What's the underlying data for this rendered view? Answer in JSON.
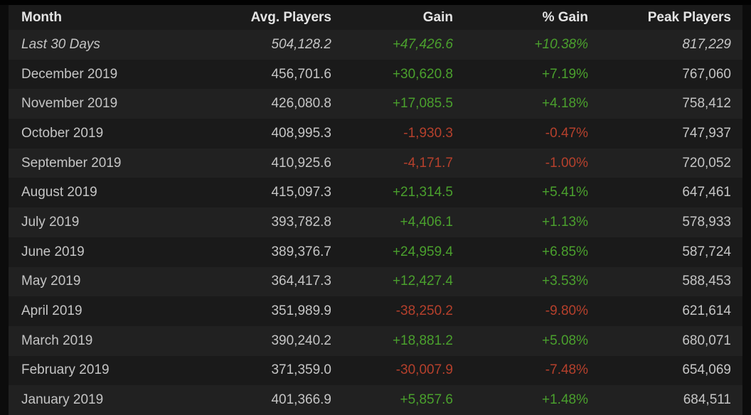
{
  "colors": {
    "positive_text": "#4aa02d",
    "negative_text": "#b5402c",
    "row_odd_bg": "#212121",
    "row_even_bg": "#1a1a1a",
    "header_text": "#e4e4e4",
    "cell_text": "#c5c5c5",
    "page_bg": "#0c0c0c"
  },
  "table": {
    "columns": {
      "month": "Month",
      "avg": "Avg. Players",
      "gain": "Gain",
      "pct": "% Gain",
      "peak": "Peak Players"
    },
    "rows": [
      {
        "month": "Last 30 Days",
        "avg": "504,128.2",
        "gain": "+47,426.6",
        "pct": "+10.38%",
        "peak": "817,229"
      },
      {
        "month": "December 2019",
        "avg": "456,701.6",
        "gain": "+30,620.8",
        "pct": "+7.19%",
        "peak": "767,060"
      },
      {
        "month": "November 2019",
        "avg": "426,080.8",
        "gain": "+17,085.5",
        "pct": "+4.18%",
        "peak": "758,412"
      },
      {
        "month": "October 2019",
        "avg": "408,995.3",
        "gain": "-1,930.3",
        "pct": "-0.47%",
        "peak": "747,937"
      },
      {
        "month": "September 2019",
        "avg": "410,925.6",
        "gain": "-4,171.7",
        "pct": "-1.00%",
        "peak": "720,052"
      },
      {
        "month": "August 2019",
        "avg": "415,097.3",
        "gain": "+21,314.5",
        "pct": "+5.41%",
        "peak": "647,461"
      },
      {
        "month": "July 2019",
        "avg": "393,782.8",
        "gain": "+4,406.1",
        "pct": "+1.13%",
        "peak": "578,933"
      },
      {
        "month": "June 2019",
        "avg": "389,376.7",
        "gain": "+24,959.4",
        "pct": "+6.85%",
        "peak": "587,724"
      },
      {
        "month": "May 2019",
        "avg": "364,417.3",
        "gain": "+12,427.4",
        "pct": "+3.53%",
        "peak": "588,453"
      },
      {
        "month": "April 2019",
        "avg": "351,989.9",
        "gain": "-38,250.2",
        "pct": "-9.80%",
        "peak": "621,614"
      },
      {
        "month": "March 2019",
        "avg": "390,240.2",
        "gain": "+18,881.2",
        "pct": "+5.08%",
        "peak": "680,071"
      },
      {
        "month": "February 2019",
        "avg": "371,359.0",
        "gain": "-30,007.9",
        "pct": "-7.48%",
        "peak": "654,069"
      },
      {
        "month": "January 2019",
        "avg": "401,366.9",
        "gain": "+5,857.6",
        "pct": "+1.48%",
        "peak": "684,511"
      }
    ]
  }
}
